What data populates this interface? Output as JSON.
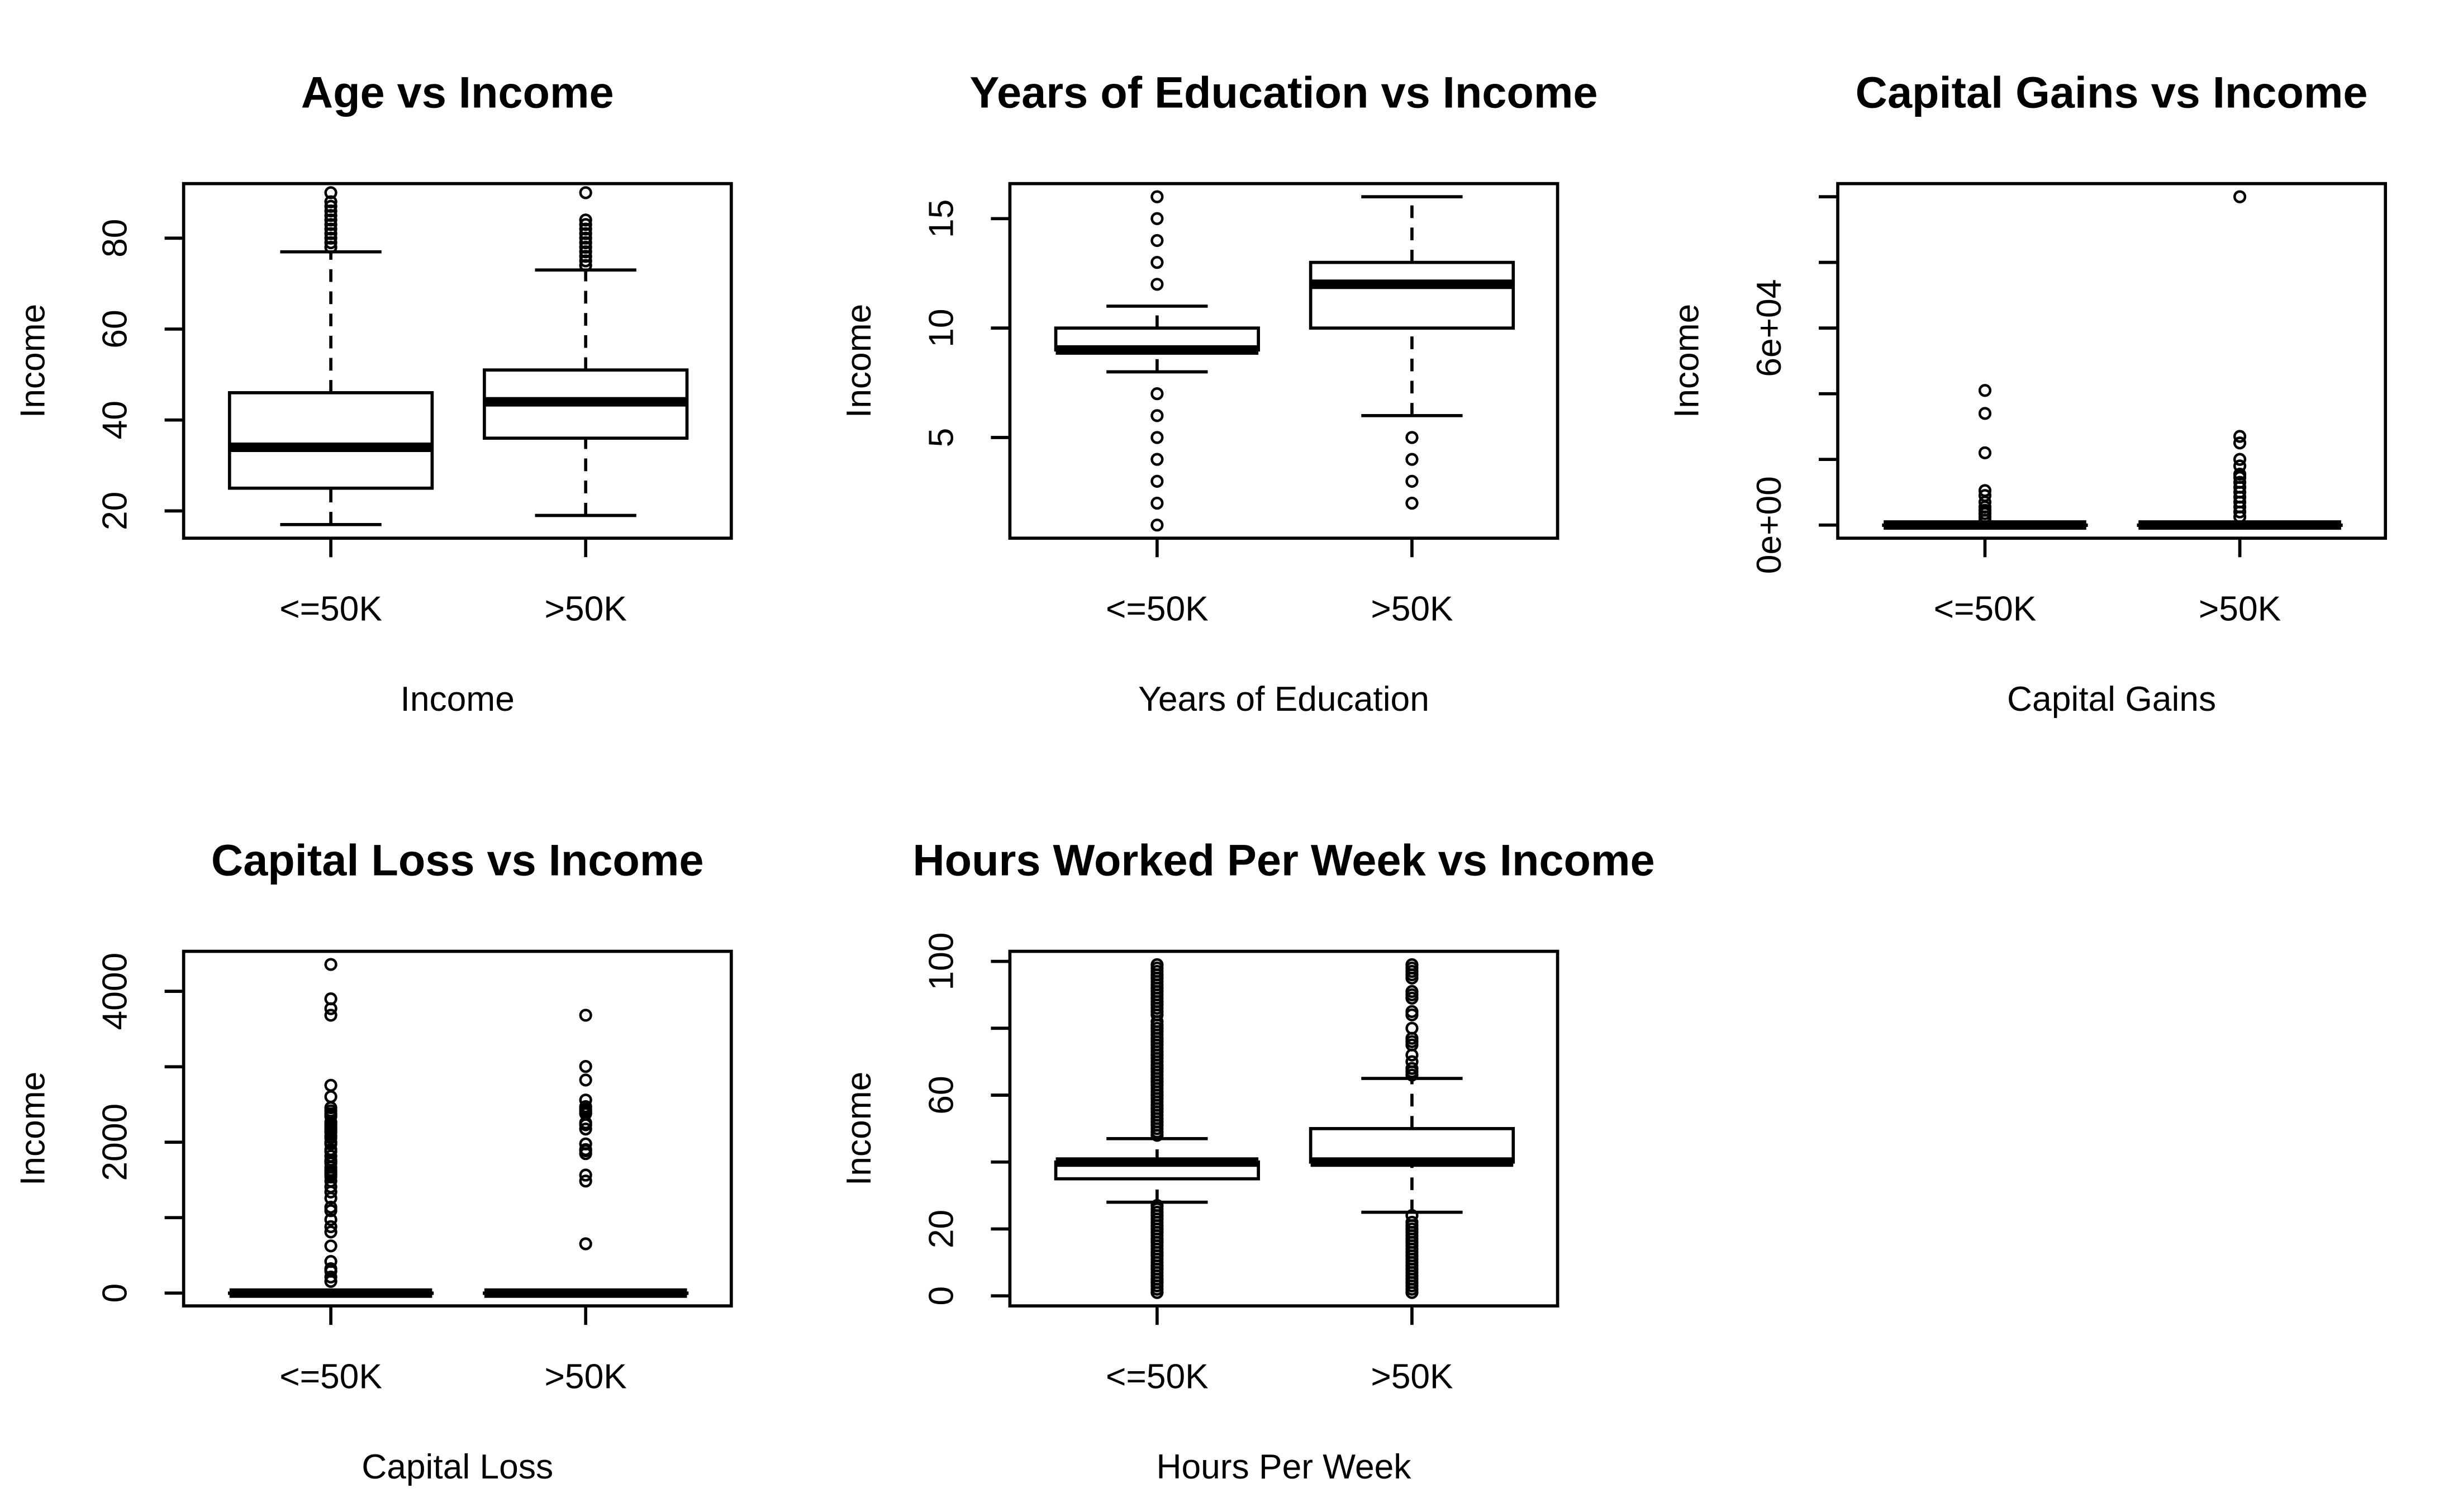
{
  "colors": {
    "ink": "#000000",
    "background": "#ffffff"
  },
  "chart_data": [
    {
      "type": "boxplot",
      "title": "Age vs Income",
      "xlabel": "Income",
      "ylabel": "Income",
      "categories": [
        "<=50K",
        ">50K"
      ],
      "ylim": [
        14,
        92
      ],
      "yticks": [
        20,
        40,
        60,
        80
      ],
      "ytick_labels": [
        "20",
        "40",
        "60",
        "80"
      ],
      "boxes": [
        {
          "category": "<=50K",
          "whisker_low": 17,
          "q1": 25,
          "median": 34,
          "q3": 46,
          "whisker_high": 77,
          "outliers": [
            78,
            79,
            80,
            81,
            82,
            83,
            84,
            85,
            86,
            87,
            88,
            90
          ]
        },
        {
          "category": ">50K",
          "whisker_low": 19,
          "q1": 36,
          "median": 44,
          "q3": 51,
          "whisker_high": 73,
          "outliers": [
            74,
            75,
            76,
            77,
            78,
            79,
            80,
            81,
            82,
            83,
            84,
            90
          ]
        }
      ]
    },
    {
      "type": "boxplot",
      "title": "Years of Education vs Income",
      "xlabel": "Years of Education",
      "ylabel": "Income",
      "categories": [
        "<=50K",
        ">50K"
      ],
      "ylim": [
        0.4,
        16.6
      ],
      "yticks": [
        5,
        10,
        15
      ],
      "ytick_labels": [
        "5",
        "10",
        "15"
      ],
      "boxes": [
        {
          "category": "<=50K",
          "whisker_low": 8,
          "q1": 9,
          "median": 9,
          "q3": 10,
          "whisker_high": 11,
          "outliers": [
            1,
            2,
            3,
            4,
            5,
            6,
            7,
            12,
            13,
            14,
            15,
            16
          ]
        },
        {
          "category": ">50K",
          "whisker_low": 6,
          "q1": 10,
          "median": 12,
          "q3": 13,
          "whisker_high": 16,
          "outliers": [
            2,
            3,
            4,
            5
          ]
        }
      ]
    },
    {
      "type": "boxplot",
      "title": "Capital Gains vs Income",
      "xlabel": "Capital Gains",
      "ylabel": "Income",
      "categories": [
        "<=50K",
        ">50K"
      ],
      "ylim": [
        -4000,
        104000
      ],
      "yticks": [
        0,
        20000,
        40000,
        60000,
        80000,
        100000
      ],
      "ytick_labels": [
        "0e+00",
        "",
        "",
        "6e+04",
        "",
        ""
      ],
      "boxes": [
        {
          "category": "<=50K",
          "whisker_low": 0,
          "q1": 0,
          "median": 0,
          "q3": 0,
          "whisker_high": 0,
          "outliers": [
            1500,
            2500,
            3500,
            4500,
            5500,
            7000,
            9000,
            10500,
            22000,
            34000,
            41000
          ]
        },
        {
          "category": ">50K",
          "whisker_low": 0,
          "q1": 0,
          "median": 0,
          "q3": 0,
          "whisker_high": 0,
          "outliers": [
            2500,
            4000,
            5500,
            7000,
            8500,
            10000,
            11500,
            13000,
            14500,
            15500,
            18000,
            20000,
            25000,
            27000,
            99999
          ]
        }
      ]
    },
    {
      "type": "boxplot",
      "title": "Capital Loss vs Income",
      "xlabel": "Capital Loss",
      "ylabel": "Income",
      "categories": [
        "<=50K",
        ">50K"
      ],
      "ylim": [
        -170,
        4530
      ],
      "yticks": [
        0,
        1000,
        2000,
        3000,
        4000
      ],
      "ytick_labels": [
        "0",
        "",
        "2000",
        "",
        "4000"
      ],
      "boxes": [
        {
          "category": "<=50K",
          "whisker_low": 0,
          "q1": 0,
          "median": 0,
          "q3": 0,
          "whisker_high": 0,
          "outliers": [
            155,
            213,
            290,
            323,
            419,
            625,
            810,
            880,
            974,
            1092,
            1138,
            1258,
            1340,
            1408,
            1485,
            1539,
            1573,
            1602,
            1628,
            1668,
            1721,
            1740,
            1762,
            1816,
            1876,
            1902,
            1974,
            2001,
            2057,
            2080,
            2129,
            2149,
            2179,
            2205,
            2231,
            2258,
            2267,
            2339,
            2352,
            2377,
            2415,
            2457,
            2603,
            2754,
            3683,
            3770,
            3900,
            4356
          ]
        },
        {
          "category": ">50K",
          "whisker_low": 0,
          "q1": 0,
          "median": 0,
          "q3": 0,
          "whisker_high": 0,
          "outliers": [
            653,
            1485,
            1564,
            1848,
            1887,
            1902,
            1977,
            2174,
            2231,
            2258,
            2377,
            2392,
            2415,
            2444,
            2472,
            2559,
            2824,
            3004,
            3683
          ]
        }
      ]
    },
    {
      "type": "boxplot",
      "title": "Hours Worked Per Week vs Income",
      "xlabel": "Hours Per Week",
      "ylabel": "Income",
      "categories": [
        "<=50K",
        ">50K"
      ],
      "ylim": [
        -3,
        103
      ],
      "yticks": [
        0,
        20,
        40,
        60,
        80,
        100
      ],
      "ytick_labels": [
        "0",
        "20",
        "",
        "60",
        "",
        "100"
      ],
      "boxes": [
        {
          "category": "<=50K",
          "whisker_low": 28,
          "q1": 35,
          "median": 40,
          "q3": 40,
          "whisker_high": 47,
          "outliers": [
            1,
            2,
            3,
            4,
            5,
            6,
            7,
            8,
            9,
            10,
            11,
            12,
            13,
            14,
            15,
            16,
            17,
            18,
            19,
            20,
            21,
            22,
            23,
            24,
            25,
            26,
            27,
            48,
            49,
            50,
            51,
            52,
            53,
            54,
            55,
            56,
            57,
            58,
            59,
            60,
            61,
            62,
            63,
            64,
            65,
            66,
            67,
            68,
            69,
            70,
            71,
            72,
            73,
            74,
            75,
            76,
            77,
            78,
            79,
            80,
            81,
            82,
            84,
            85,
            86,
            87,
            88,
            89,
            90,
            91,
            92,
            93,
            94,
            95,
            96,
            97,
            98,
            99
          ]
        },
        {
          "category": ">50K",
          "whisker_low": 25,
          "q1": 40,
          "median": 40,
          "q3": 50,
          "whisker_high": 65,
          "outliers": [
            1,
            2,
            3,
            4,
            5,
            6,
            7,
            8,
            9,
            10,
            11,
            12,
            13,
            14,
            15,
            16,
            17,
            18,
            19,
            20,
            21,
            22,
            24,
            66,
            67,
            68,
            70,
            72,
            75,
            76,
            77,
            80,
            84,
            85,
            89,
            90,
            91,
            95,
            96,
            97,
            98,
            99
          ]
        }
      ]
    }
  ]
}
